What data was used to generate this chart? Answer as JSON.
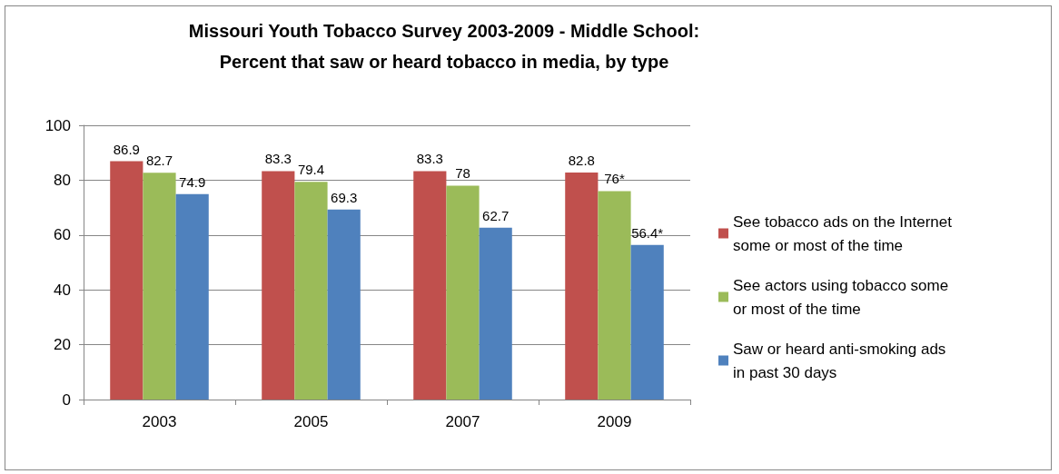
{
  "chart_data": {
    "type": "bar",
    "title": "Missouri Youth Tobacco Survey 2003-2009 - Middle School:\nPercent that saw or heard tobacco in media, by type",
    "categories": [
      "2003",
      "2005",
      "2007",
      "2009"
    ],
    "series": [
      {
        "name": "See tobacco ads on the Internet some or most of the time",
        "color": "#c0504d",
        "values": [
          86.9,
          83.3,
          83.3,
          82.8
        ],
        "value_labels": [
          "86.9",
          "83.3",
          "83.3",
          "82.8"
        ]
      },
      {
        "name": "See actors using tobacco some or most of the time",
        "color": "#9bbb59",
        "values": [
          82.7,
          79.4,
          78,
          76
        ],
        "value_labels": [
          "82.7",
          "79.4",
          "78",
          "76*"
        ]
      },
      {
        "name": "Saw or heard anti-smoking ads in past 30 days",
        "color": "#4f81bd",
        "values": [
          74.9,
          69.3,
          62.7,
          56.4
        ],
        "value_labels": [
          "74.9",
          "69.3",
          "62.7",
          "56.4*"
        ]
      }
    ],
    "ylim": [
      0,
      100
    ],
    "yticks": [
      0,
      20,
      40,
      60,
      80,
      100
    ],
    "grid": "y",
    "legend": "right"
  }
}
